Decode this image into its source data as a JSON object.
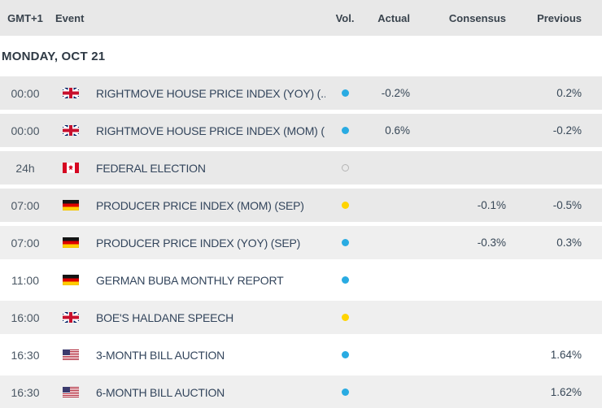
{
  "header": {
    "gmt": "GMT+1",
    "event": "Event",
    "vol": "Vol.",
    "actual": "Actual",
    "consensus": "Consensus",
    "previous": "Previous"
  },
  "date_header": "MONDAY, OCT 21",
  "colors": {
    "header_bg": "#e8e8e8",
    "row_gray": "#e9e9e9",
    "row_gray_light": "#efefef",
    "row_white": "#ffffff",
    "vol_high_blue": "#29abe2",
    "vol_medium_yellow": "#ffd400",
    "vol_none_outline": "#b5b5b5",
    "event_text": "#33455c"
  },
  "rows": [
    {
      "time": "00:00",
      "country": "gb",
      "flag_name": "uk-flag",
      "event": "RIGHTMOVE HOUSE PRICE INDEX (YOY) (...",
      "vol": "blue",
      "actual": "-0.2%",
      "consensus": "",
      "previous": "0.2%",
      "shade": "a"
    },
    {
      "time": "00:00",
      "country": "gb",
      "flag_name": "uk-flag",
      "event": "RIGHTMOVE HOUSE PRICE INDEX (MOM) (...",
      "vol": "blue",
      "actual": "0.6%",
      "consensus": "",
      "previous": "-0.2%",
      "shade": "a"
    },
    {
      "time": "24h",
      "country": "ca",
      "flag_name": "canada-flag",
      "event": "FEDERAL ELECTION",
      "vol": "none",
      "actual": "",
      "consensus": "",
      "previous": "",
      "shade": "a"
    },
    {
      "time": "07:00",
      "country": "de",
      "flag_name": "germany-flag",
      "event": "PRODUCER PRICE INDEX (MOM) (SEP)",
      "vol": "yellow",
      "actual": "",
      "consensus": "-0.1%",
      "previous": "-0.5%",
      "shade": "a"
    },
    {
      "time": "07:00",
      "country": "de",
      "flag_name": "germany-flag",
      "event": "PRODUCER PRICE INDEX (YOY) (SEP)",
      "vol": "blue",
      "actual": "",
      "consensus": "-0.3%",
      "previous": "0.3%",
      "shade": "b"
    },
    {
      "time": "11:00",
      "country": "de",
      "flag_name": "germany-flag",
      "event": "GERMAN BUBA MONTHLY REPORT",
      "vol": "blue",
      "actual": "",
      "consensus": "",
      "previous": "",
      "shade": "w"
    },
    {
      "time": "16:00",
      "country": "gb",
      "flag_name": "uk-flag",
      "event": "BOE'S HALDANE SPEECH",
      "vol": "yellow",
      "actual": "",
      "consensus": "",
      "previous": "",
      "shade": "b"
    },
    {
      "time": "16:30",
      "country": "us",
      "flag_name": "us-flag",
      "event": "3-MONTH BILL AUCTION",
      "vol": "blue",
      "actual": "",
      "consensus": "",
      "previous": "1.64%",
      "shade": "w"
    },
    {
      "time": "16:30",
      "country": "us",
      "flag_name": "us-flag",
      "event": "6-MONTH BILL AUCTION",
      "vol": "blue",
      "actual": "",
      "consensus": "",
      "previous": "1.62%",
      "shade": "b"
    }
  ]
}
